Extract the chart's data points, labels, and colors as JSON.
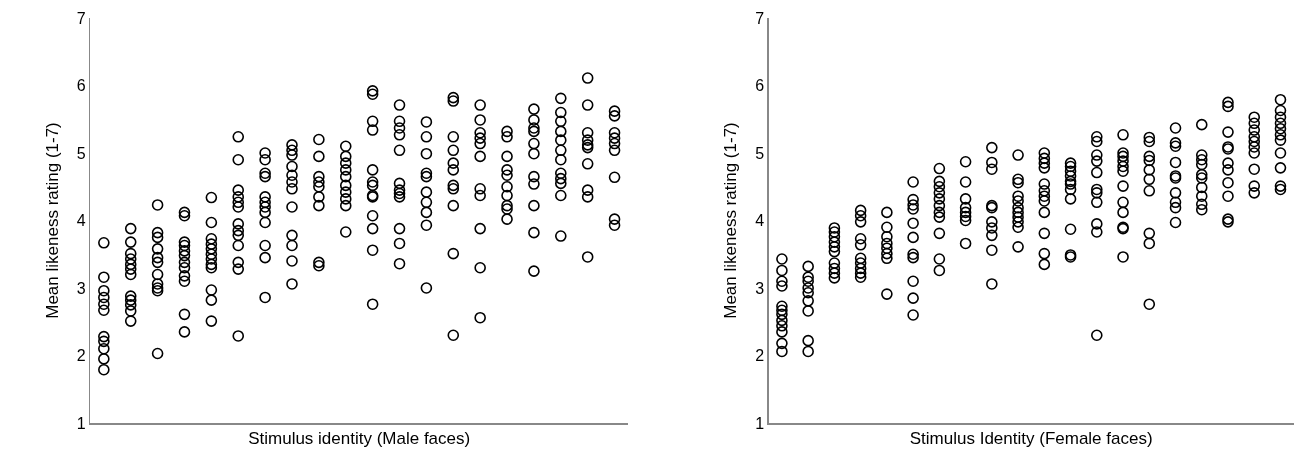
{
  "chart_data": [
    {
      "type": "scatter",
      "xlabel": "Stimulus identity (Male faces)",
      "ylabel": "Mean likeness rating (1-7)",
      "ylim": [
        1,
        7
      ],
      "yticks": [
        1,
        2,
        3,
        4,
        5,
        6,
        7
      ],
      "tick_labels": "y",
      "marker": "circle",
      "categories": [
        null,
        null,
        null,
        null,
        null,
        null,
        null,
        null,
        null,
        null,
        null,
        null,
        null,
        null,
        null,
        null,
        null,
        null,
        null,
        null
      ],
      "series": [
        {
          "color": "#000000",
          "values": [
            3.67,
            3.88,
            4.23,
            4.12,
            4.34,
            5.24,
            5.0,
            5.12,
            5.2,
            5.1,
            5.92,
            5.71,
            5.46,
            5.82,
            5.71,
            5.32,
            5.65,
            5.81,
            6.11,
            5.62
          ]
        },
        {
          "color": "#000000",
          "values": [
            3.16,
            3.68,
            3.82,
            4.07,
            3.97,
            4.9,
            4.9,
            5.04,
            4.95,
            4.95,
            5.87,
            5.47,
            5.24,
            5.77,
            5.49,
            5.24,
            5.49,
            5.6,
            5.71,
            5.55
          ]
        },
        {
          "color": "#000000",
          "values": [
            2.96,
            3.51,
            3.75,
            3.68,
            3.73,
            4.45,
            4.7,
            4.97,
            4.65,
            4.85,
            5.47,
            5.37,
            4.99,
            5.24,
            5.3,
            4.95,
            5.37,
            5.47,
            5.3,
            5.3
          ]
        },
        {
          "color": "#000000",
          "values": [
            2.86,
            3.43,
            3.58,
            3.63,
            3.65,
            4.35,
            4.65,
            4.8,
            4.57,
            4.75,
            5.34,
            5.27,
            4.7,
            5.04,
            5.22,
            4.75,
            5.32,
            5.32,
            5.19,
            5.22
          ]
        },
        {
          "color": "#000000",
          "values": [
            2.76,
            3.35,
            3.45,
            3.55,
            3.58,
            4.27,
            4.35,
            4.67,
            4.5,
            4.65,
            4.75,
            5.04,
            4.65,
            4.85,
            5.14,
            4.67,
            5.14,
            5.19,
            5.12,
            5.14
          ]
        },
        {
          "color": "#000000",
          "values": [
            2.67,
            3.28,
            3.38,
            3.48,
            3.5,
            4.2,
            4.27,
            4.57,
            4.35,
            4.52,
            4.57,
            4.55,
            4.42,
            4.75,
            4.95,
            4.5,
            4.99,
            5.04,
            5.08,
            5.04
          ]
        },
        {
          "color": "#000000",
          "values": [
            2.28,
            3.2,
            3.2,
            3.38,
            3.43,
            3.95,
            4.2,
            4.47,
            4.22,
            4.42,
            4.52,
            4.45,
            4.27,
            4.52,
            4.47,
            4.37,
            4.65,
            4.9,
            4.84,
            4.64
          ]
        },
        {
          "color": "#000000",
          "values": [
            2.21,
            2.88,
            3.06,
            3.3,
            3.35,
            3.85,
            4.12,
            4.2,
            3.38,
            4.32,
            4.37,
            4.4,
            4.12,
            4.47,
            4.37,
            4.22,
            4.54,
            4.7,
            4.45,
            4.02
          ]
        },
        {
          "color": "#000000",
          "values": [
            2.1,
            2.82,
            3.0,
            3.18,
            3.3,
            3.78,
            3.97,
            3.78,
            3.33,
            4.22,
            4.35,
            4.35,
            3.93,
            4.22,
            3.88,
            4.17,
            4.22,
            4.62,
            4.35,
            3.93
          ]
        },
        {
          "color": "#000000",
          "values": [
            1.95,
            2.75,
            2.96,
            3.1,
            2.97,
            3.63,
            3.63,
            3.63,
            null,
            3.83,
            4.07,
            3.88,
            3.0,
            3.51,
            3.3,
            4.02,
            3.82,
            4.55,
            3.46,
            null
          ]
        },
        {
          "color": "#000000",
          "values": [
            1.79,
            2.66,
            2.03,
            2.61,
            2.82,
            3.38,
            3.45,
            3.4,
            null,
            null,
            3.88,
            3.66,
            null,
            2.3,
            2.56,
            null,
            3.25,
            4.37,
            null,
            null
          ]
        },
        {
          "color": "#000000",
          "values": [
            null,
            2.51,
            null,
            2.35,
            2.51,
            3.28,
            2.86,
            3.06,
            null,
            null,
            3.56,
            3.36,
            null,
            null,
            null,
            null,
            null,
            3.77,
            null,
            null
          ]
        },
        {
          "color": "#000000",
          "values": [
            null,
            null,
            null,
            null,
            null,
            2.29,
            null,
            null,
            null,
            null,
            2.76,
            null,
            null,
            null,
            null,
            null,
            null,
            null,
            null,
            null
          ]
        }
      ]
    },
    {
      "type": "scatter",
      "xlabel": "Stimulus Identity (Female faces)",
      "ylabel": "Mean likeness rating (1-7)",
      "ylim": [
        1,
        7
      ],
      "yticks": [
        1,
        2,
        3,
        4,
        5,
        6,
        7
      ],
      "tick_labels": "y",
      "marker": "circle",
      "categories": [
        null,
        null,
        null,
        null,
        null,
        null,
        null,
        null,
        null,
        null,
        null,
        null,
        null,
        null,
        null,
        null,
        null,
        null,
        null,
        null
      ],
      "series": [
        {
          "color": "#000000",
          "values": [
            3.43,
            3.32,
            3.89,
            4.15,
            4.12,
            4.57,
            4.77,
            4.87,
            5.08,
            4.97,
            5.0,
            4.85,
            5.24,
            5.27,
            5.23,
            5.37,
            5.42,
            5.75,
            5.53,
            5.79
          ]
        },
        {
          "color": "#000000",
          "values": [
            3.26,
            3.16,
            3.83,
            4.07,
            3.9,
            4.31,
            4.58,
            4.57,
            4.86,
            4.61,
            4.92,
            4.8,
            5.17,
            5.0,
            5.17,
            5.15,
            4.97,
            5.69,
            5.44,
            5.63
          ]
        },
        {
          "color": "#000000",
          "values": [
            3.1,
            3.1,
            3.76,
            3.98,
            3.76,
            4.23,
            4.5,
            4.32,
            4.76,
            4.56,
            4.85,
            4.73,
            4.97,
            4.95,
            4.95,
            5.1,
            4.9,
            5.31,
            5.34,
            5.53
          ]
        },
        {
          "color": "#000000",
          "values": [
            3.03,
            3.0,
            3.68,
            3.73,
            3.66,
            4.17,
            4.41,
            4.19,
            4.22,
            4.36,
            4.78,
            4.66,
            4.88,
            4.88,
            4.89,
            4.86,
            4.83,
            5.09,
            5.24,
            5.44
          ]
        },
        {
          "color": "#000000",
          "values": [
            2.73,
            2.93,
            3.61,
            3.64,
            3.59,
            3.96,
            4.32,
            4.12,
            4.19,
            4.29,
            4.54,
            4.58,
            4.71,
            4.8,
            4.75,
            4.66,
            4.68,
            5.06,
            5.17,
            5.36
          ]
        },
        {
          "color": "#000000",
          "values": [
            2.67,
            2.81,
            3.54,
            3.44,
            3.51,
            3.75,
            4.22,
            4.06,
            3.98,
            4.19,
            4.44,
            4.54,
            4.46,
            4.73,
            4.61,
            4.63,
            4.63,
            4.85,
            5.09,
            5.27
          ]
        },
        {
          "color": "#000000",
          "values": [
            2.61,
            2.66,
            3.37,
            3.37,
            3.44,
            3.5,
            4.12,
            4.0,
            3.89,
            4.12,
            4.36,
            4.46,
            4.41,
            4.51,
            4.44,
            4.41,
            4.49,
            4.75,
            5.0,
            5.19
          ]
        },
        {
          "color": "#000000",
          "values": [
            2.52,
            2.22,
            3.29,
            3.29,
            2.91,
            3.45,
            4.05,
            3.66,
            3.78,
            4.05,
            4.29,
            4.32,
            4.27,
            4.27,
            3.81,
            4.27,
            4.36,
            4.56,
            4.76,
            5.0
          ]
        },
        {
          "color": "#000000",
          "values": [
            2.44,
            2.06,
            3.22,
            3.22,
            null,
            3.1,
            3.81,
            null,
            3.56,
            3.98,
            4.12,
            3.87,
            3.95,
            4.12,
            3.66,
            4.19,
            4.24,
            4.36,
            4.51,
            4.78
          ]
        },
        {
          "color": "#000000",
          "values": [
            2.35,
            null,
            3.15,
            3.16,
            null,
            2.85,
            3.43,
            null,
            3.06,
            3.9,
            3.81,
            3.49,
            3.83,
            3.9,
            2.76,
            3.97,
            4.16,
            4.02,
            4.41,
            4.51
          ]
        },
        {
          "color": "#000000",
          "values": [
            2.18,
            null,
            null,
            null,
            null,
            2.6,
            3.26,
            null,
            null,
            3.61,
            3.51,
            3.46,
            2.3,
            3.88,
            null,
            null,
            null,
            3.98,
            null,
            4.46
          ]
        },
        {
          "color": "#000000",
          "values": [
            2.06,
            null,
            null,
            null,
            null,
            null,
            null,
            null,
            null,
            null,
            3.35,
            null,
            null,
            3.46,
            null,
            null,
            null,
            null,
            null,
            null
          ]
        }
      ]
    }
  ]
}
